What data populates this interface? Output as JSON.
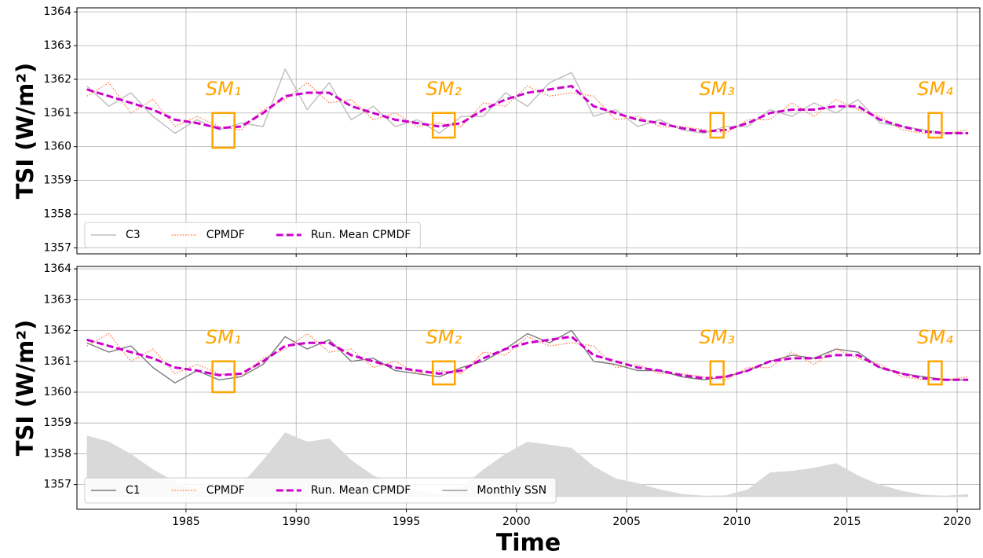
{
  "chart_data": [
    {
      "type": "line",
      "ylabel": "TSI (W/m²)",
      "xlim": [
        1980.05,
        2021.03
      ],
      "ylim": [
        1356.82,
        1364.12
      ],
      "xticks": [
        1985,
        1990,
        1995,
        2000,
        2005,
        2010,
        2015,
        2020
      ],
      "yticks": [
        1357,
        1358,
        1359,
        1360,
        1361,
        1362,
        1363,
        1364
      ],
      "show_xtick_labels": false,
      "grid": true,
      "legend": "lower left",
      "x": [
        1980.5,
        1981.5,
        1982.5,
        1983.5,
        1984.5,
        1985.5,
        1986.5,
        1987.5,
        1988.5,
        1989.5,
        1990.5,
        1991.5,
        1992.5,
        1993.5,
        1994.5,
        1995.5,
        1996.5,
        1997.5,
        1998.5,
        1999.5,
        2000.5,
        2001.5,
        2002.5,
        2003.5,
        2004.5,
        2005.5,
        2006.5,
        2007.5,
        2008.5,
        2009.5,
        2010.5,
        2011.5,
        2012.5,
        2013.5,
        2014.5,
        2015.5,
        2016.5,
        2017.5,
        2018.5,
        2019.5,
        2020.5
      ],
      "series": [
        {
          "name": "C3",
          "color": "#bdbdbd",
          "style": "solid",
          "values": [
            1361.8,
            1361.2,
            1361.6,
            1360.9,
            1360.4,
            1360.8,
            1360.5,
            1360.7,
            1360.6,
            1362.3,
            1361.1,
            1361.9,
            1360.8,
            1361.2,
            1360.6,
            1360.8,
            1360.4,
            1360.9,
            1360.9,
            1361.6,
            1361.2,
            1361.9,
            1362.2,
            1360.9,
            1361.1,
            1360.6,
            1360.8,
            1360.5,
            1360.4,
            1360.6,
            1360.6,
            1361.1,
            1360.9,
            1361.3,
            1361.0,
            1361.4,
            1360.7,
            1360.6,
            1360.5,
            1360.4,
            1360.4
          ]
        },
        {
          "name": "CPMDF",
          "color": "#ff7f50",
          "style": "dotted",
          "values": [
            1361.5,
            1361.9,
            1361.0,
            1361.4,
            1360.6,
            1360.9,
            1360.6,
            1360.5,
            1361.1,
            1361.4,
            1361.9,
            1361.3,
            1361.4,
            1360.8,
            1361.0,
            1360.6,
            1360.7,
            1360.6,
            1361.3,
            1361.2,
            1361.8,
            1361.5,
            1361.6,
            1361.5,
            1360.8,
            1360.9,
            1360.6,
            1360.6,
            1360.5,
            1360.4,
            1360.8,
            1360.8,
            1361.3,
            1360.9,
            1361.4,
            1361.1,
            1360.9,
            1360.5,
            1360.4,
            1360.4,
            1360.5
          ]
        },
        {
          "name": "Run. Mean CPMDF",
          "color": "#cc00cc",
          "style": "dashed",
          "values": [
            1361.7,
            1361.5,
            1361.3,
            1361.1,
            1360.8,
            1360.7,
            1360.55,
            1360.6,
            1361.0,
            1361.5,
            1361.6,
            1361.6,
            1361.2,
            1361.0,
            1360.8,
            1360.7,
            1360.6,
            1360.7,
            1361.1,
            1361.4,
            1361.6,
            1361.7,
            1361.8,
            1361.2,
            1361.0,
            1360.8,
            1360.7,
            1360.55,
            1360.45,
            1360.5,
            1360.7,
            1361.0,
            1361.1,
            1361.1,
            1361.2,
            1361.2,
            1360.8,
            1360.6,
            1360.45,
            1360.4,
            1360.4
          ]
        }
      ],
      "annotations": [
        {
          "text": "SM₁",
          "x": [
            1986.2,
            1987.2
          ],
          "y": [
            1359.97,
            1361.0
          ]
        },
        {
          "text": "SM₂",
          "x": [
            1996.2,
            1997.2
          ],
          "y": [
            1360.27,
            1361.0
          ]
        },
        {
          "text": "SM₃",
          "x": [
            2008.8,
            2009.4
          ],
          "y": [
            1360.27,
            1361.0
          ]
        },
        {
          "text": "SM₄",
          "x": [
            2018.7,
            2019.3
          ],
          "y": [
            1360.27,
            1361.0
          ]
        }
      ]
    },
    {
      "type": "line",
      "ylabel": "TSI (W/m²)",
      "xlabel": "Time",
      "xlim": [
        1980.05,
        2021.03
      ],
      "ylim": [
        1356.2,
        1364.08
      ],
      "y2lim": [
        -40,
        750
      ],
      "xticks": [
        1985,
        1990,
        1995,
        2000,
        2005,
        2010,
        2015,
        2020
      ],
      "yticks": [
        1357,
        1358,
        1359,
        1360,
        1361,
        1362,
        1363,
        1364
      ],
      "show_xtick_labels": true,
      "grid": true,
      "legend": "lower left",
      "x": [
        1980.5,
        1981.5,
        1982.5,
        1983.5,
        1984.5,
        1985.5,
        1986.5,
        1987.5,
        1988.5,
        1989.5,
        1990.5,
        1991.5,
        1992.5,
        1993.5,
        1994.5,
        1995.5,
        1996.5,
        1997.5,
        1998.5,
        1999.5,
        2000.5,
        2001.5,
        2002.5,
        2003.5,
        2004.5,
        2005.5,
        2006.5,
        2007.5,
        2008.5,
        2009.5,
        2010.5,
        2011.5,
        2012.5,
        2013.5,
        2014.5,
        2015.5,
        2016.5,
        2017.5,
        2018.5,
        2019.5,
        2020.5
      ],
      "series": [
        {
          "name": "C1",
          "color": "#7a7a7a",
          "style": "solid",
          "values": [
            1361.6,
            1361.3,
            1361.5,
            1360.8,
            1360.3,
            1360.7,
            1360.4,
            1360.5,
            1360.9,
            1361.8,
            1361.4,
            1361.7,
            1361.0,
            1361.1,
            1360.7,
            1360.6,
            1360.5,
            1360.8,
            1361.0,
            1361.4,
            1361.9,
            1361.6,
            1362.0,
            1361.0,
            1360.9,
            1360.7,
            1360.7,
            1360.5,
            1360.4,
            1360.5,
            1360.7,
            1361.0,
            1361.2,
            1361.1,
            1361.4,
            1361.3,
            1360.8,
            1360.6,
            1360.5,
            1360.4,
            1360.4
          ]
        },
        {
          "name": "CPMDF",
          "color": "#ff7f50",
          "style": "dotted",
          "values": [
            1361.5,
            1361.9,
            1361.0,
            1361.4,
            1360.6,
            1360.9,
            1360.6,
            1360.5,
            1361.1,
            1361.4,
            1361.9,
            1361.3,
            1361.4,
            1360.8,
            1361.0,
            1360.6,
            1360.7,
            1360.6,
            1361.3,
            1361.2,
            1361.8,
            1361.5,
            1361.6,
            1361.5,
            1360.8,
            1360.9,
            1360.6,
            1360.6,
            1360.5,
            1360.4,
            1360.8,
            1360.8,
            1361.3,
            1360.9,
            1361.4,
            1361.1,
            1360.9,
            1360.5,
            1360.4,
            1360.4,
            1360.5
          ]
        },
        {
          "name": "Run. Mean CPMDF",
          "color": "#cc00cc",
          "style": "dashed",
          "values": [
            1361.7,
            1361.5,
            1361.3,
            1361.1,
            1360.8,
            1360.7,
            1360.55,
            1360.6,
            1361.0,
            1361.5,
            1361.6,
            1361.6,
            1361.2,
            1361.0,
            1360.8,
            1360.7,
            1360.6,
            1360.7,
            1361.1,
            1361.4,
            1361.6,
            1361.7,
            1361.8,
            1361.2,
            1361.0,
            1360.8,
            1360.7,
            1360.55,
            1360.45,
            1360.5,
            1360.7,
            1361.0,
            1361.1,
            1361.1,
            1361.2,
            1361.2,
            1360.8,
            1360.6,
            1360.45,
            1360.4,
            1360.4
          ]
        },
        {
          "name": "Monthly SSN",
          "color": "#d9d9d9",
          "style": "area",
          "axis": "y2",
          "values": [
            200,
            180,
            140,
            90,
            50,
            20,
            15,
            40,
            120,
            210,
            180,
            190,
            120,
            70,
            40,
            20,
            10,
            30,
            90,
            140,
            180,
            170,
            160,
            100,
            60,
            45,
            25,
            10,
            4,
            5,
            25,
            80,
            85,
            95,
            110,
            70,
            40,
            20,
            7,
            4,
            9
          ]
        }
      ],
      "annotations": [
        {
          "text": "SM₁",
          "x": [
            1986.2,
            1987.2
          ],
          "y": [
            1360.0,
            1361.0
          ]
        },
        {
          "text": "SM₂",
          "x": [
            1996.2,
            1997.2
          ],
          "y": [
            1360.25,
            1361.0
          ]
        },
        {
          "text": "SM₃",
          "x": [
            2008.8,
            2009.4
          ],
          "y": [
            1360.25,
            1361.0
          ]
        },
        {
          "text": "SM₄",
          "x": [
            2018.7,
            2019.3
          ],
          "y": [
            1360.25,
            1361.0
          ]
        }
      ]
    }
  ]
}
